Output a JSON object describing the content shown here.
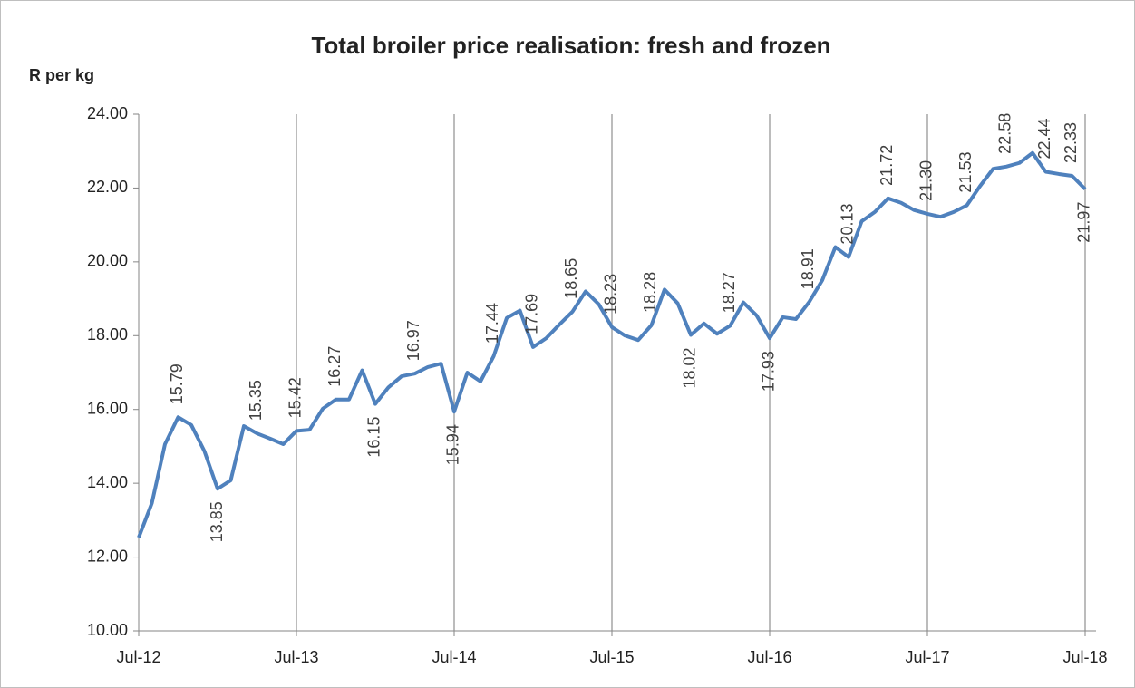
{
  "chart_data": {
    "type": "line",
    "title": "Total broiler price realisation: fresh and frozen",
    "y_label": "R per kg",
    "categories": [
      "Jul-12",
      null,
      null,
      null,
      null,
      null,
      null,
      null,
      null,
      null,
      null,
      null,
      "Jul-13",
      null,
      null,
      null,
      null,
      null,
      null,
      null,
      null,
      null,
      null,
      null,
      "Jul-14",
      null,
      null,
      null,
      null,
      null,
      null,
      null,
      null,
      null,
      null,
      null,
      "Jul-15",
      null,
      null,
      null,
      null,
      null,
      null,
      null,
      null,
      null,
      null,
      null,
      "Jul-16",
      null,
      null,
      null,
      null,
      null,
      null,
      null,
      null,
      null,
      null,
      null,
      "Jul-17",
      null,
      null,
      null,
      null,
      null,
      null,
      null,
      null,
      null,
      null,
      null,
      "Jul-18"
    ],
    "series": [
      {
        "name": "Total broiler price",
        "color": "#4f81bd",
        "values": [
          12.53,
          13.46,
          15.06,
          15.79,
          15.58,
          14.87,
          13.85,
          14.08,
          15.55,
          15.35,
          15.21,
          15.06,
          15.42,
          15.45,
          16.02,
          16.27,
          16.27,
          17.06,
          16.15,
          16.6,
          16.9,
          16.97,
          17.15,
          17.24,
          15.94,
          17.0,
          16.76,
          17.44,
          18.48,
          18.68,
          17.69,
          17.93,
          18.3,
          18.65,
          19.2,
          18.85,
          18.23,
          18.0,
          17.88,
          18.28,
          19.25,
          18.88,
          18.02,
          18.33,
          18.05,
          18.27,
          18.9,
          18.55,
          17.93,
          18.5,
          18.45,
          18.91,
          19.5,
          20.4,
          20.13,
          21.1,
          21.35,
          21.72,
          21.6,
          21.4,
          21.3,
          21.22,
          21.35,
          21.53,
          22.05,
          22.52,
          22.58,
          22.68,
          22.95,
          22.44,
          22.38,
          22.33,
          21.97
        ],
        "value_labels": [
          null,
          null,
          null,
          "15.79",
          null,
          null,
          "13.85",
          null,
          null,
          "15.35",
          null,
          null,
          "15.42",
          null,
          null,
          "16.27",
          null,
          null,
          "16.15",
          null,
          null,
          "16.97",
          null,
          null,
          "15.94",
          null,
          null,
          "17.44",
          null,
          null,
          "17.69",
          null,
          null,
          "18.65",
          null,
          null,
          "18.23",
          null,
          null,
          "18.28",
          null,
          null,
          "18.02",
          null,
          null,
          "18.27",
          null,
          null,
          "17.93",
          null,
          null,
          "18.91",
          null,
          null,
          "20.13",
          null,
          null,
          "21.72",
          null,
          null,
          "21.30",
          null,
          null,
          "21.53",
          null,
          null,
          "22.58",
          null,
          null,
          "22.44",
          null,
          "22.33",
          "21.97"
        ]
      }
    ],
    "ylim": [
      10,
      24
    ],
    "yticks": [
      {
        "value": 10,
        "label": "10.00"
      },
      {
        "value": 12,
        "label": "12.00"
      },
      {
        "value": 14,
        "label": "14.00"
      },
      {
        "value": 16,
        "label": "16.00"
      },
      {
        "value": 18,
        "label": "18.00"
      },
      {
        "value": 20,
        "label": "20.00"
      },
      {
        "value": 22,
        "label": "22.00"
      },
      {
        "value": 24,
        "label": "24.00"
      }
    ],
    "grid": "x"
  }
}
